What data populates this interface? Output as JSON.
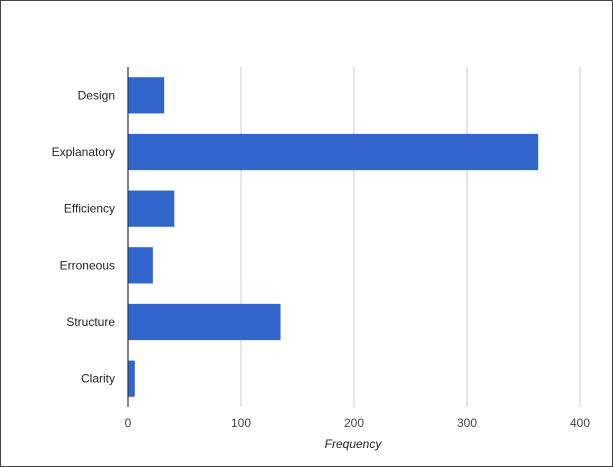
{
  "chart_data": {
    "type": "bar",
    "orientation": "horizontal",
    "categories": [
      "Design",
      "Explanatory",
      "Efficiency",
      "Erroneous",
      "Structure",
      "Clarity"
    ],
    "values": [
      32,
      363,
      41,
      22,
      135,
      6
    ],
    "title": "",
    "xlabel": "Frequency",
    "ylabel": "",
    "xlim": [
      0,
      400
    ],
    "xticks": [
      0,
      100,
      200,
      300,
      400
    ],
    "grid": true,
    "bar_color": "#3366cc"
  }
}
